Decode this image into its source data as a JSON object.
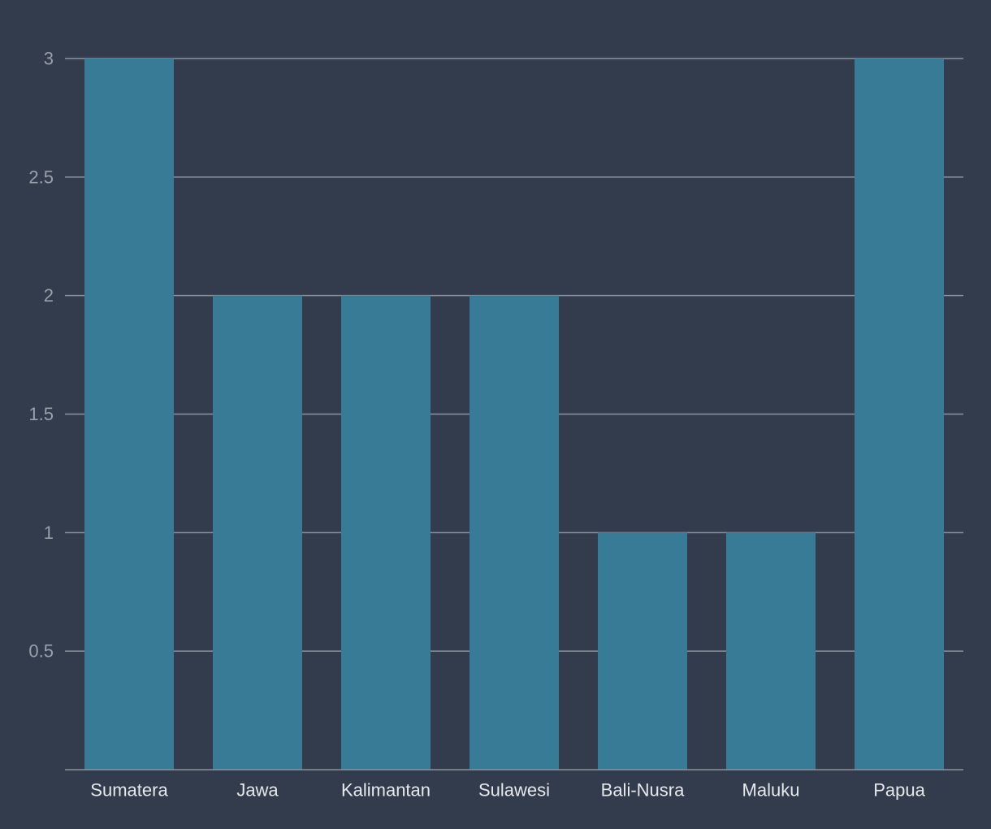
{
  "chart_data": {
    "type": "bar",
    "title": "",
    "xlabel": "",
    "ylabel": "",
    "categories": [
      "Sumatera",
      "Jawa",
      "Kalimantan",
      "Sulawesi",
      "Bali-Nusra",
      "Maluku",
      "Papua"
    ],
    "values": [
      3,
      2,
      2,
      2,
      1,
      1,
      3
    ],
    "ylim": [
      0,
      3
    ],
    "yticks": [
      0.5,
      1,
      1.5,
      2,
      2.5,
      3
    ],
    "ytick_labels": [
      "0.5",
      "1",
      "1.5",
      "2",
      "2.5",
      "3"
    ],
    "grid": true,
    "legend": "none",
    "colors": {
      "bar": "#387b96",
      "background": "#323c4d",
      "grid": "#8d929c"
    }
  }
}
